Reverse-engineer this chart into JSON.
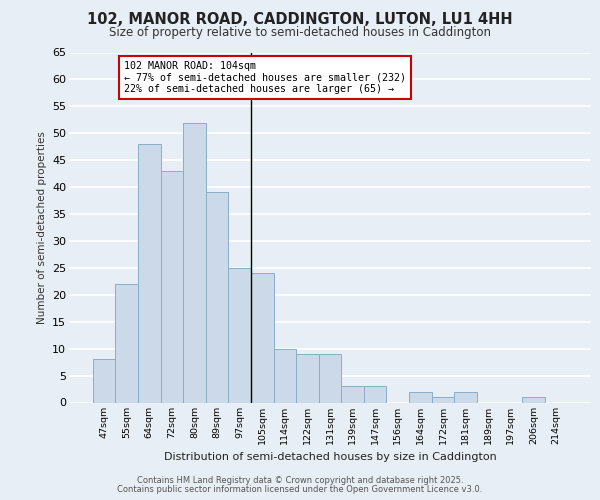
{
  "title_line1": "102, MANOR ROAD, CADDINGTON, LUTON, LU1 4HH",
  "title_line2": "Size of property relative to semi-detached houses in Caddington",
  "xlabel": "Distribution of semi-detached houses by size in Caddington",
  "ylabel": "Number of semi-detached properties",
  "categories": [
    "47sqm",
    "55sqm",
    "64sqm",
    "72sqm",
    "80sqm",
    "89sqm",
    "97sqm",
    "105sqm",
    "114sqm",
    "122sqm",
    "131sqm",
    "139sqm",
    "147sqm",
    "156sqm",
    "164sqm",
    "172sqm",
    "181sqm",
    "189sqm",
    "197sqm",
    "206sqm",
    "214sqm"
  ],
  "values": [
    8,
    22,
    48,
    43,
    52,
    39,
    25,
    24,
    10,
    9,
    9,
    3,
    3,
    0,
    2,
    1,
    2,
    0,
    0,
    1,
    0
  ],
  "bar_color": "#ccd9e8",
  "bar_edge_color": "#8aaec8",
  "background_color": "#e8eef5",
  "grid_color": "#ffffff",
  "vline_x": 7,
  "annotation_title": "102 MANOR ROAD: 104sqm",
  "annotation_line1": "← 77% of semi-detached houses are smaller (232)",
  "annotation_line2": "22% of semi-detached houses are larger (65) →",
  "annotation_box_color": "#ffffff",
  "annotation_box_edge": "#cc0000",
  "ylim": [
    0,
    65
  ],
  "yticks": [
    0,
    5,
    10,
    15,
    20,
    25,
    30,
    35,
    40,
    45,
    50,
    55,
    60,
    65
  ],
  "footer_line1": "Contains HM Land Registry data © Crown copyright and database right 2025.",
  "footer_line2": "Contains public sector information licensed under the Open Government Licence v3.0."
}
